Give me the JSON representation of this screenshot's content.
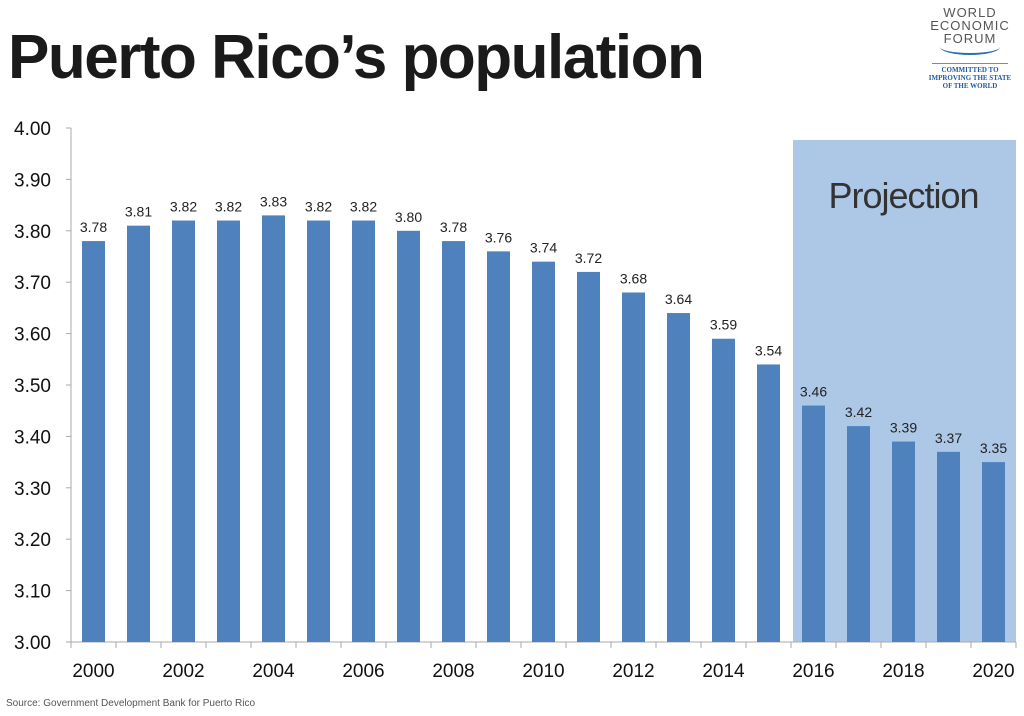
{
  "title": "Puerto Rico’s population",
  "logo": {
    "lines": [
      "WORLD",
      "ECONOMIC",
      "FORUM"
    ],
    "tagline": [
      "COMMITTED TO",
      "IMPROVING THE STATE",
      "OF THE WORLD"
    ]
  },
  "source": "Source: Government Development Bank for Puerto Rico",
  "colors": {
    "bar": "#4f81bd",
    "projection_band": "#adc8e6"
  },
  "chart_data": {
    "type": "bar",
    "categories": [
      "2000",
      "2001",
      "2002",
      "2003",
      "2004",
      "2005",
      "2006",
      "2007",
      "2008",
      "2009",
      "2010",
      "2011",
      "2012",
      "2013",
      "2014",
      "2015",
      "2016",
      "2017",
      "2018",
      "2019",
      "2020"
    ],
    "values": [
      3.78,
      3.81,
      3.82,
      3.82,
      3.83,
      3.82,
      3.82,
      3.8,
      3.78,
      3.76,
      3.74,
      3.72,
      3.68,
      3.64,
      3.59,
      3.54,
      3.46,
      3.42,
      3.39,
      3.37,
      3.35
    ],
    "data_labels": [
      "3.78",
      "3.81",
      "3.82",
      "3.82",
      "3.83",
      "3.82",
      "3.82",
      "3.80",
      "3.78",
      "3.76",
      "3.74",
      "3.72",
      "3.68",
      "3.64",
      "3.59",
      "3.54",
      "3.46",
      "3.42",
      "3.39",
      "3.37",
      "3.35"
    ],
    "xtick_labels": [
      "2000",
      "2002",
      "2004",
      "2006",
      "2008",
      "2010",
      "2012",
      "2014",
      "2016",
      "2018",
      "2020"
    ],
    "ytick_labels": [
      "3.00",
      "3.10",
      "3.20",
      "3.30",
      "3.40",
      "3.50",
      "3.60",
      "3.70",
      "3.80",
      "3.90",
      "4.00"
    ],
    "ylim": [
      3.0,
      4.0
    ],
    "grid": false,
    "annotation": {
      "label": "Projection",
      "from": "2016",
      "to": "2020"
    }
  }
}
